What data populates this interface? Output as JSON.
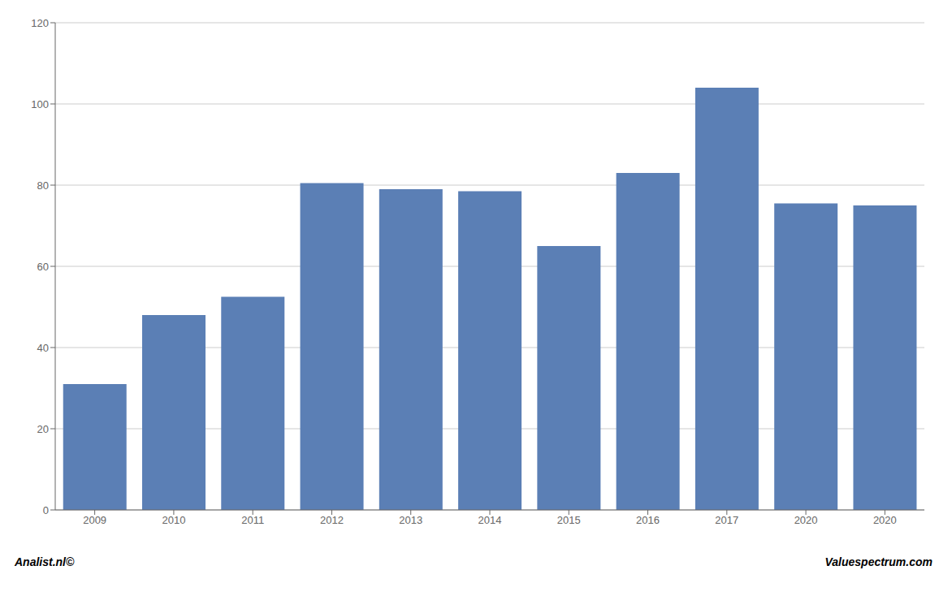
{
  "chart_data": {
    "type": "bar",
    "categories": [
      "2009",
      "2010",
      "2011",
      "2012",
      "2013",
      "2014",
      "2015",
      "2016",
      "2017",
      "2020",
      "2020"
    ],
    "values": [
      31,
      48,
      52.5,
      80.5,
      79,
      78.5,
      65,
      83,
      104,
      75.5,
      75
    ],
    "color": "#5B7FB5",
    "ylim": [
      0,
      120
    ],
    "yticks": [
      0,
      20,
      40,
      60,
      80,
      100,
      120
    ],
    "grid": true,
    "annotations": [
      "Analist.nl©",
      "Valuespectrum.com"
    ]
  }
}
